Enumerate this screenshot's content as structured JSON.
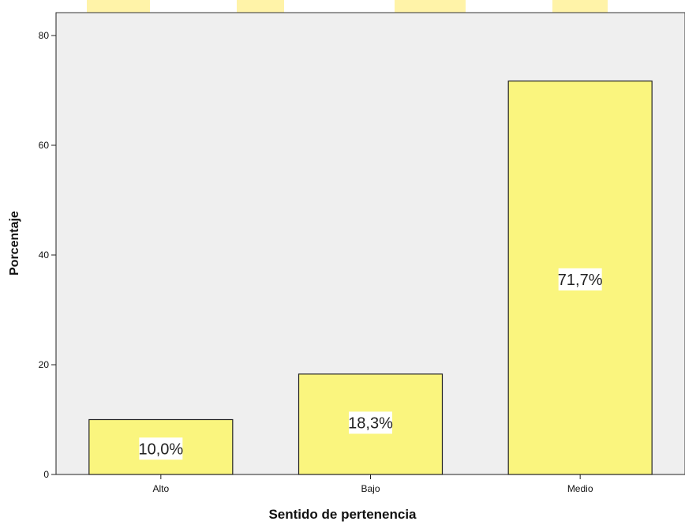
{
  "chart_data": {
    "type": "bar",
    "categories": [
      "Alto",
      "Bajo",
      "Medio"
    ],
    "values": [
      10.0,
      18.3,
      71.7
    ],
    "data_labels": [
      "10,0%",
      "18,3%",
      "71,7%"
    ],
    "xlabel": "Sentido de pertenencia",
    "ylabel": "Porcentaje",
    "ylim": [
      0,
      80
    ],
    "yticks": [
      0,
      20,
      40,
      60,
      80
    ],
    "ytick_labels": [
      "0",
      "20",
      "40",
      "60",
      "80"
    ],
    "grid": false,
    "colors": {
      "plot_background": "#efefef",
      "bar_fill": "#faf57e",
      "bar_stroke": "#222222",
      "label_box": "#ffffff",
      "banner": "#fff3a8"
    }
  }
}
